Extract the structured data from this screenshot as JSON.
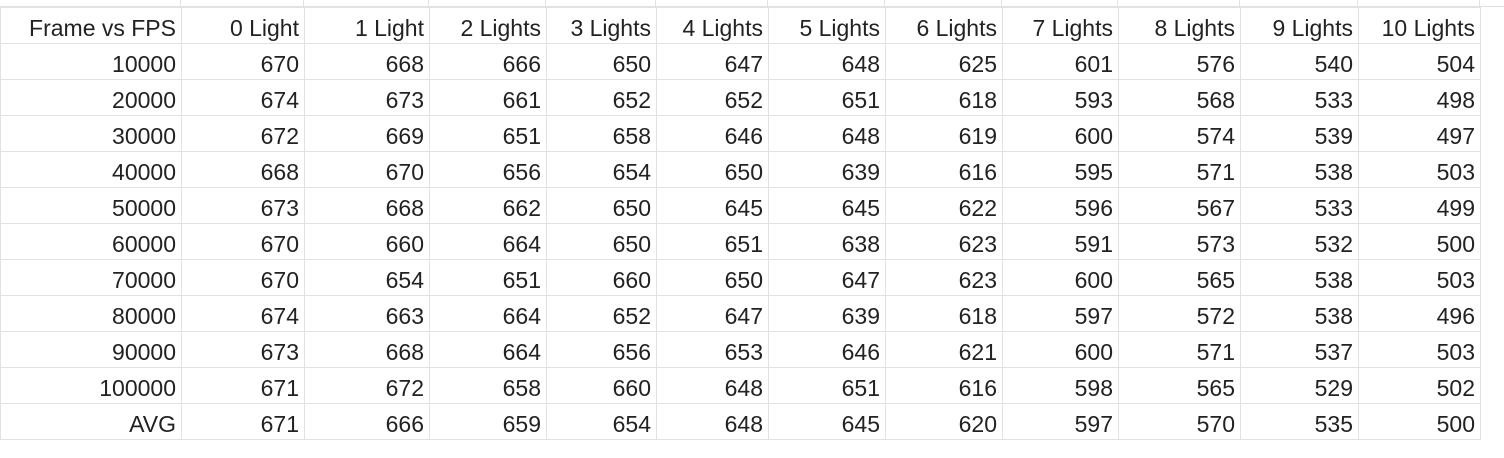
{
  "sheet": {
    "headers": [
      "Frame vs FPS",
      "0 Light",
      "1 Light",
      "2 Lights",
      "3 Lights",
      "4 Lights",
      "5 Lights",
      "6 Lights",
      "7 Lights",
      "8 Lights",
      "9 Lights",
      "10 Lights"
    ],
    "rows": [
      [
        "10000",
        "670",
        "668",
        "666",
        "650",
        "647",
        "648",
        "625",
        "601",
        "576",
        "540",
        "504"
      ],
      [
        "20000",
        "674",
        "673",
        "661",
        "652",
        "652",
        "651",
        "618",
        "593",
        "568",
        "533",
        "498"
      ],
      [
        "30000",
        "672",
        "669",
        "651",
        "658",
        "646",
        "648",
        "619",
        "600",
        "574",
        "539",
        "497"
      ],
      [
        "40000",
        "668",
        "670",
        "656",
        "654",
        "650",
        "639",
        "616",
        "595",
        "571",
        "538",
        "503"
      ],
      [
        "50000",
        "673",
        "668",
        "662",
        "650",
        "645",
        "645",
        "622",
        "596",
        "567",
        "533",
        "499"
      ],
      [
        "60000",
        "670",
        "660",
        "664",
        "650",
        "651",
        "638",
        "623",
        "591",
        "573",
        "532",
        "500"
      ],
      [
        "70000",
        "670",
        "654",
        "651",
        "660",
        "650",
        "647",
        "623",
        "600",
        "565",
        "538",
        "503"
      ],
      [
        "80000",
        "674",
        "663",
        "664",
        "652",
        "647",
        "639",
        "618",
        "597",
        "572",
        "538",
        "496"
      ],
      [
        "90000",
        "673",
        "668",
        "664",
        "656",
        "653",
        "646",
        "621",
        "600",
        "571",
        "537",
        "503"
      ],
      [
        "100000",
        "671",
        "672",
        "658",
        "660",
        "648",
        "651",
        "616",
        "598",
        "565",
        "529",
        "502"
      ],
      [
        "AVG",
        "671",
        "666",
        "659",
        "654",
        "648",
        "645",
        "620",
        "597",
        "570",
        "535",
        "500"
      ]
    ]
  }
}
